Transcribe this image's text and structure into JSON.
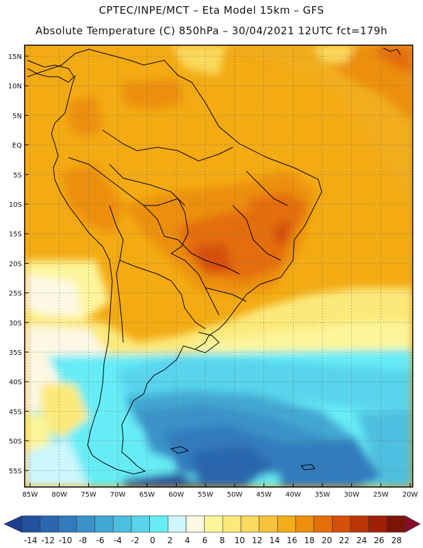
{
  "header": {
    "line1": "CPTEC/INPE/MCT –  Eta Model 15km – GFS",
    "line2": "Absolute Temperature (C) 850hPa – 30/04/2021 12UTC fct=179h"
  },
  "lat_labels": [
    "15N",
    "10N",
    "5N",
    "EQ",
    "5S",
    "10S",
    "15S",
    "20S",
    "25S",
    "30S",
    "35S",
    "40S",
    "45S",
    "50S",
    "55S"
  ],
  "lon_labels": [
    "85W",
    "80W",
    "75W",
    "70W",
    "65W",
    "60W",
    "55W",
    "50W",
    "45W",
    "40W",
    "35W",
    "30W",
    "25W",
    "20W"
  ],
  "colorbar": {
    "labels": [
      "-14",
      "-12",
      "-10",
      "-8",
      "-6",
      "-4",
      "-2",
      "0",
      "2",
      "4",
      "6",
      "8",
      "10",
      "12",
      "14",
      "16",
      "18",
      "20",
      "22",
      "24",
      "26",
      "28"
    ],
    "colors": [
      "#1e3f8f",
      "#24519e",
      "#2b66ae",
      "#317bbd",
      "#3b92c9",
      "#43a8d3",
      "#4dbfe0",
      "#58d4ec",
      "#66ecf6",
      "#ccf6fb",
      "#fdf8e4",
      "#fdf59a",
      "#fce97a",
      "#fbd95c",
      "#f6c43c",
      "#f1ad1a",
      "#ec8f0b",
      "#e46e0a",
      "#d55008",
      "#bb3606",
      "#9e2004",
      "#7d1505",
      "#8b0a2b"
    ]
  },
  "palette": {
    "background": "#f3aa13",
    "ocean_cold": "#2f6fb5",
    "border": "#000000",
    "grid": "#666666"
  }
}
